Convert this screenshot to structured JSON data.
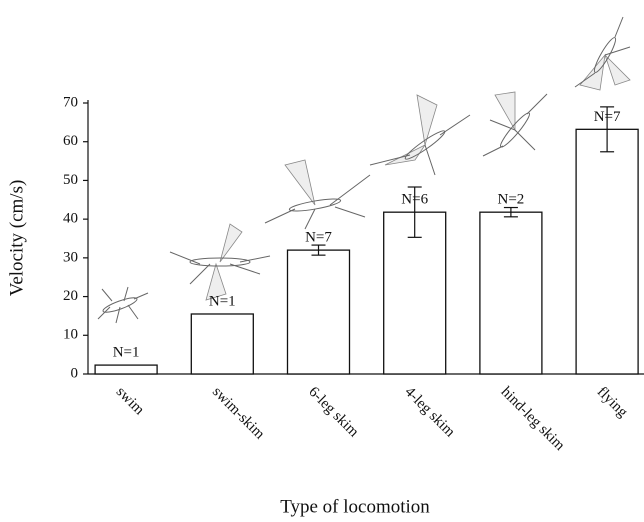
{
  "chart_data": {
    "type": "bar",
    "x_label": "Type of locomotion",
    "y_label": "Velocity (cm/s)",
    "categories": [
      "swim",
      "swim-skim",
      "6-leg skim",
      "4-leg skim",
      "hind-leg skim",
      "flying"
    ],
    "values": [
      2.3,
      15.5,
      32,
      41.8,
      41.8,
      63.2
    ],
    "errors": [
      0,
      0,
      1.3,
      6.5,
      1.2,
      5.8
    ],
    "bar_labels": [
      "N=1",
      "N=1",
      "N=7",
      "N=6",
      "N=2",
      "N=7"
    ],
    "color": "#ffffff",
    "ylim": [
      0,
      70
    ],
    "yticks": [
      0,
      10,
      20,
      30,
      40,
      50,
      60,
      70
    ]
  }
}
